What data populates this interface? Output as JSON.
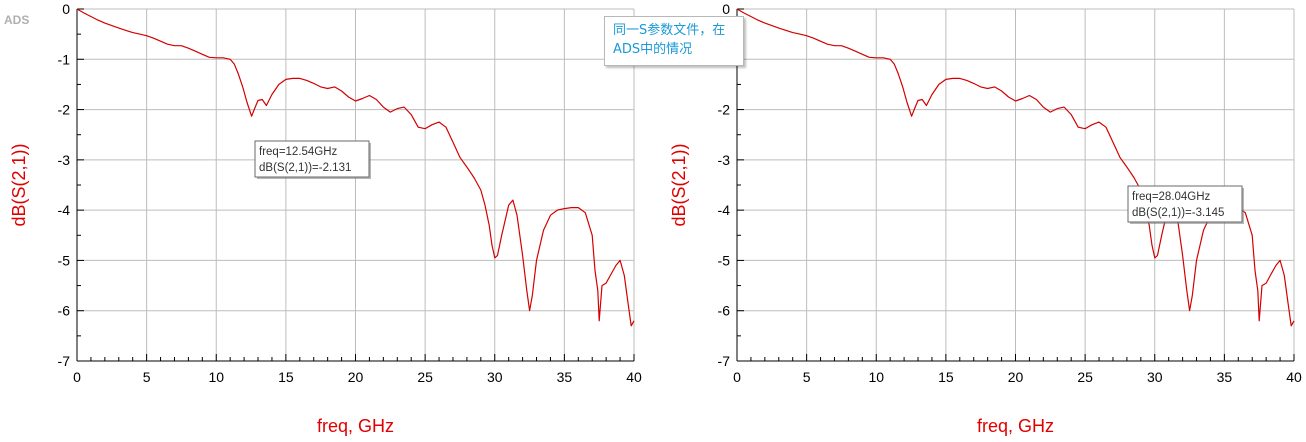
{
  "app_label": "ADS",
  "note": {
    "line1": "同一S参数文件，在",
    "line2": "ADS中的情况"
  },
  "colors": {
    "trace": "#d40000",
    "axis_label": "#e00000",
    "note_text": "#1a9ad6",
    "grid": "#bdbdbd"
  },
  "chart_data": [
    {
      "type": "line",
      "xlabel": "freq, GHz",
      "ylabel": "dB(S(2,1))",
      "xlim": [
        0,
        40
      ],
      "ylim": [
        -7,
        0
      ],
      "xticks": [
        0,
        5,
        10,
        15,
        20,
        25,
        30,
        35,
        40
      ],
      "yticks": [
        0,
        -1,
        -2,
        -3,
        -4,
        -5,
        -6,
        -7
      ],
      "grid": true,
      "series": [
        {
          "x": [
            0,
            0.5,
            1,
            1.5,
            2,
            3,
            4,
            4.5,
            5,
            5.5,
            6,
            6.5,
            7,
            7.5,
            8,
            8.5,
            9,
            9.5,
            10,
            10.5,
            11,
            11.3,
            11.6,
            11.9,
            12.2,
            12.54,
            12.8,
            13,
            13.3,
            13.6,
            14,
            14.5,
            15,
            15.5,
            16,
            16.5,
            17,
            17.5,
            18,
            18.5,
            19,
            19.5,
            20,
            20.5,
            21,
            21.5,
            22,
            22.5,
            23,
            23.5,
            24,
            24.5,
            25,
            25.5,
            26,
            26.5,
            27,
            27.5,
            28,
            28.5,
            29,
            29.3,
            29.6,
            29.8,
            30,
            30.2,
            30.5,
            31,
            31.3,
            31.6,
            32,
            32.3,
            32.5,
            32.7,
            33,
            33.5,
            34,
            34.5,
            35,
            35.5,
            36,
            36.5,
            37,
            37.2,
            37.4,
            37.5,
            37.7,
            38,
            38.3,
            38.7,
            39,
            39.3,
            39.6,
            39.8,
            40
          ],
          "y": [
            0,
            -0.08,
            -0.15,
            -0.22,
            -0.28,
            -0.38,
            -0.47,
            -0.5,
            -0.53,
            -0.58,
            -0.64,
            -0.7,
            -0.73,
            -0.73,
            -0.78,
            -0.84,
            -0.9,
            -0.96,
            -0.97,
            -0.97,
            -1.0,
            -1.1,
            -1.3,
            -1.55,
            -1.85,
            -2.131,
            -1.95,
            -1.82,
            -1.8,
            -1.92,
            -1.7,
            -1.5,
            -1.4,
            -1.38,
            -1.38,
            -1.42,
            -1.48,
            -1.55,
            -1.58,
            -1.55,
            -1.63,
            -1.75,
            -1.83,
            -1.78,
            -1.72,
            -1.8,
            -1.95,
            -2.05,
            -1.98,
            -1.95,
            -2.1,
            -2.35,
            -2.38,
            -2.3,
            -2.25,
            -2.35,
            -2.65,
            -2.95,
            -3.145,
            -3.35,
            -3.6,
            -3.9,
            -4.3,
            -4.7,
            -4.95,
            -4.9,
            -4.5,
            -3.9,
            -3.8,
            -4.1,
            -4.9,
            -5.6,
            -6.0,
            -5.7,
            -5.0,
            -4.4,
            -4.1,
            -4.0,
            -3.97,
            -3.95,
            -3.95,
            -4.05,
            -4.5,
            -5.2,
            -5.6,
            -6.2,
            -5.5,
            -5.45,
            -5.3,
            -5.1,
            -5.0,
            -5.3,
            -5.9,
            -6.3,
            -6.2
          ]
        }
      ],
      "marker": {
        "line1": "freq=12.54GHz",
        "line2": "dB(S(2,1))=-2.131",
        "x": 12.54,
        "y": -2.131
      }
    },
    {
      "type": "line",
      "xlabel": "freq, GHz",
      "ylabel": "dB(S(2,1))",
      "xlim": [
        0,
        40
      ],
      "ylim": [
        -7,
        0
      ],
      "xticks": [
        0,
        5,
        10,
        15,
        20,
        25,
        30,
        35,
        40
      ],
      "yticks": [
        0,
        -1,
        -2,
        -3,
        -4,
        -5,
        -6,
        -7
      ],
      "grid": true,
      "series": [
        {
          "x": [
            0,
            0.5,
            1,
            1.5,
            2,
            3,
            4,
            4.5,
            5,
            5.5,
            6,
            6.5,
            7,
            7.5,
            8,
            8.5,
            9,
            9.5,
            10,
            10.5,
            11,
            11.3,
            11.6,
            11.9,
            12.2,
            12.54,
            12.8,
            13,
            13.3,
            13.6,
            14,
            14.5,
            15,
            15.5,
            16,
            16.5,
            17,
            17.5,
            18,
            18.5,
            19,
            19.5,
            20,
            20.5,
            21,
            21.5,
            22,
            22.5,
            23,
            23.5,
            24,
            24.5,
            25,
            25.5,
            26,
            26.5,
            27,
            27.5,
            28,
            28.5,
            29,
            29.3,
            29.6,
            29.8,
            30,
            30.2,
            30.5,
            31,
            31.3,
            31.6,
            32,
            32.3,
            32.5,
            32.7,
            33,
            33.5,
            34,
            34.5,
            35,
            35.5,
            36,
            36.5,
            37,
            37.2,
            37.4,
            37.5,
            37.7,
            38,
            38.3,
            38.7,
            39,
            39.3,
            39.6,
            39.8,
            40
          ],
          "y": [
            0,
            -0.08,
            -0.15,
            -0.22,
            -0.28,
            -0.38,
            -0.47,
            -0.5,
            -0.53,
            -0.58,
            -0.64,
            -0.7,
            -0.73,
            -0.73,
            -0.78,
            -0.84,
            -0.9,
            -0.96,
            -0.97,
            -0.97,
            -1.0,
            -1.1,
            -1.3,
            -1.55,
            -1.85,
            -2.131,
            -1.95,
            -1.82,
            -1.8,
            -1.92,
            -1.7,
            -1.5,
            -1.4,
            -1.38,
            -1.38,
            -1.42,
            -1.48,
            -1.55,
            -1.58,
            -1.55,
            -1.63,
            -1.75,
            -1.83,
            -1.78,
            -1.72,
            -1.8,
            -1.95,
            -2.05,
            -1.98,
            -1.95,
            -2.1,
            -2.35,
            -2.38,
            -2.3,
            -2.25,
            -2.35,
            -2.65,
            -2.95,
            -3.145,
            -3.35,
            -3.6,
            -3.9,
            -4.3,
            -4.7,
            -4.95,
            -4.9,
            -4.5,
            -3.9,
            -3.8,
            -4.1,
            -4.9,
            -5.6,
            -6.0,
            -5.7,
            -5.0,
            -4.4,
            -4.1,
            -4.0,
            -3.97,
            -3.95,
            -3.95,
            -4.05,
            -4.5,
            -5.2,
            -5.6,
            -6.2,
            -5.5,
            -5.45,
            -5.3,
            -5.1,
            -5.0,
            -5.3,
            -5.9,
            -6.3,
            -6.2
          ]
        }
      ],
      "marker": {
        "line1": "freq=28.04GHz",
        "line2": "dB(S(2,1))=-3.145",
        "x": 28.04,
        "y": -3.145
      }
    }
  ]
}
